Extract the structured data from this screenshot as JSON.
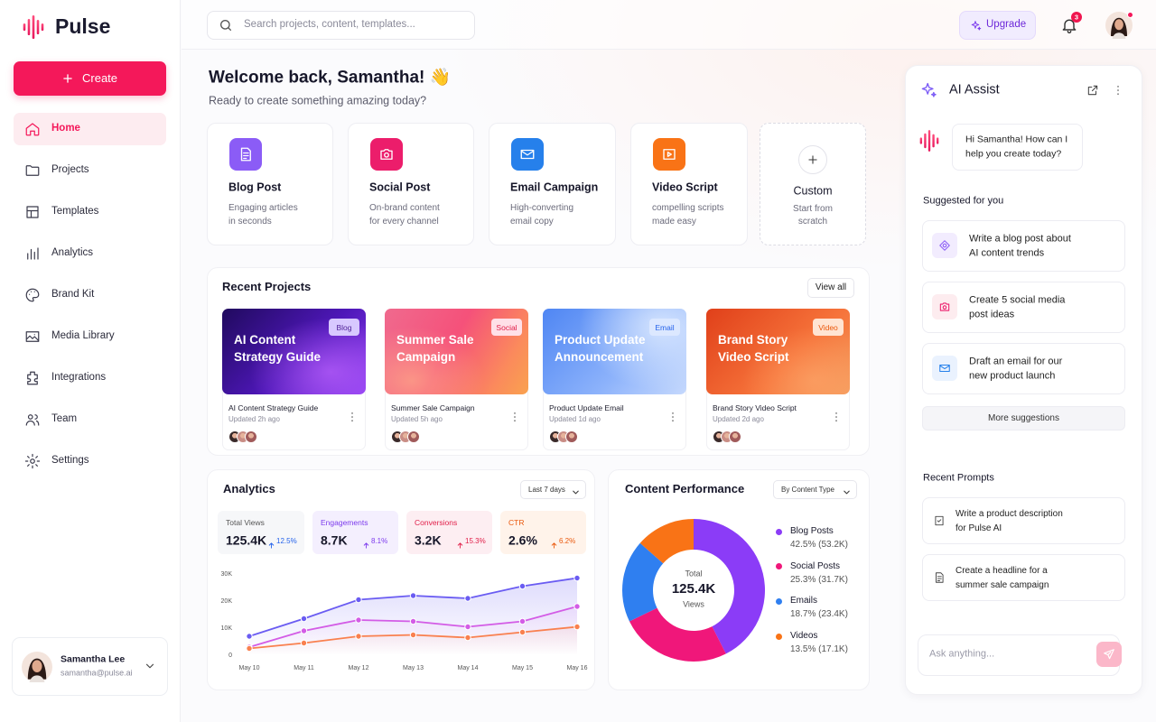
{
  "sidebar": {
    "brand": "Pulse",
    "create": "Create",
    "active": 0,
    "nav": [
      "Home",
      "Projects",
      "Templates",
      "Analytics",
      "Brand Kit",
      "Media Library",
      "Integrations",
      "Team",
      "Settings"
    ],
    "user": {
      "name": "Samantha Lee",
      "email": "samantha@pulse.ai"
    }
  },
  "topbar": {
    "search_placeholder": "Search projects, content, templates...",
    "upgrade": "Upgrade",
    "notifications": "3"
  },
  "welcome": {
    "title": "Welcome back, Samantha! 👋",
    "subtitle": "Ready to create something amazing today?"
  },
  "quick_actions": [
    {
      "title": "Blog Post",
      "description": [
        "Engaging articles",
        "in seconds"
      ],
      "color": "#8b5cf6"
    },
    {
      "title": "Social Post",
      "description": [
        "On-brand content",
        "for every channel"
      ],
      "color": "#ec1d6b"
    },
    {
      "title": "Email Campaign",
      "description": [
        "High-converting",
        "email copy"
      ],
      "color": "#2680eb"
    },
    {
      "title": "Video Script",
      "description": [
        "compelling scripts",
        "made easy"
      ],
      "color": "#f97316"
    },
    {
      "title": "Custom",
      "description": [
        "Start from",
        "scratch"
      ]
    }
  ],
  "recent_projects": {
    "title": "Recent Projects",
    "view_all": "View all",
    "items": [
      {
        "cover_title": [
          "AI Content",
          "Strategy Guide"
        ],
        "tag": "Blog",
        "name": "AI Content Strategy Guide",
        "updated": "Updated 2h ago"
      },
      {
        "cover_title": [
          "Summer Sale",
          "Campaign"
        ],
        "tag": "Social",
        "name": "Summer Sale Campaign",
        "updated": "Updated 5h ago"
      },
      {
        "cover_title": [
          "Product Update",
          "Announcement"
        ],
        "tag": "Email",
        "name": "Product Update Email",
        "updated": "Updated 1d ago"
      },
      {
        "cover_title": [
          "Brand Story",
          "Video Script"
        ],
        "tag": "Video",
        "name": "Brand Story Video Script",
        "updated": "Updated 2d ago"
      }
    ]
  },
  "analytics": {
    "title": "Analytics",
    "range": "Last 7 days",
    "stats": [
      {
        "label": "Total Views",
        "value": "125.4K",
        "change": "12.5%"
      },
      {
        "label": "Engagements",
        "value": "8.7K",
        "change": "8.1%"
      },
      {
        "label": "Conversions",
        "value": "3.2K",
        "change": "15.3%"
      },
      {
        "label": "CTR",
        "value": "2.6%",
        "change": "6.2%"
      }
    ],
    "chart": {
      "type": "line",
      "categories": [
        "May 10",
        "May 11",
        "May 12",
        "May 13",
        "May 14",
        "May 15",
        "May 16"
      ],
      "series": [
        {
          "color": "#6a5cf2",
          "values": [
            7000,
            13500,
            20500,
            22000,
            21000,
            25500,
            28500
          ]
        },
        {
          "color": "#d35ce6",
          "values": [
            3000,
            9000,
            13000,
            12500,
            10500,
            12500,
            18000
          ]
        },
        {
          "color": "#f9804f",
          "values": [
            2500,
            4500,
            7000,
            7500,
            6500,
            8500,
            10500
          ]
        }
      ],
      "ylim": [
        0,
        30000
      ],
      "yticks": [
        0,
        {
          "value": 10000,
          "label": "10K"
        },
        {
          "value": 20000,
          "label": "20K"
        },
        {
          "value": 30000,
          "label": "30K"
        }
      ]
    }
  },
  "content_performance": {
    "title": "Content Performance",
    "filter": "By Content Type",
    "chart": {
      "type": "pie",
      "categories": [
        "Blog Posts",
        "Social Posts",
        "Emails",
        "Videos"
      ],
      "values": [
        42.5,
        25.3,
        18.7,
        13.5
      ],
      "value_labels": [
        "42.5% (53.2K)",
        "25.3% (31.7K)",
        "18.7% (23.4K)",
        "13.5% (17.1K)"
      ],
      "colors": [
        "#8b3cf7",
        "#f0177a",
        "#2f7ff0",
        "#f97316"
      ],
      "center": {
        "label": "Total",
        "value": "125.4K",
        "unit": "Views"
      }
    }
  },
  "ai_assist": {
    "title": "AI Assist",
    "greeting": [
      "Hi Samantha! How can I",
      "help you create today?"
    ],
    "suggested_title": "Suggested for you",
    "suggestions": [
      [
        "Write a blog post about",
        "AI content trends"
      ],
      [
        "Create 5 social media",
        "post ideas"
      ],
      [
        "Draft an email for our",
        "new product launch"
      ]
    ],
    "more": "More suggestions",
    "recent_title": "Recent Prompts",
    "recent": [
      [
        "Write a product description",
        "for Pulse AI"
      ],
      [
        "Create a headline for a",
        "summer sale campaign"
      ]
    ],
    "input_placeholder": "Ask anything..."
  }
}
